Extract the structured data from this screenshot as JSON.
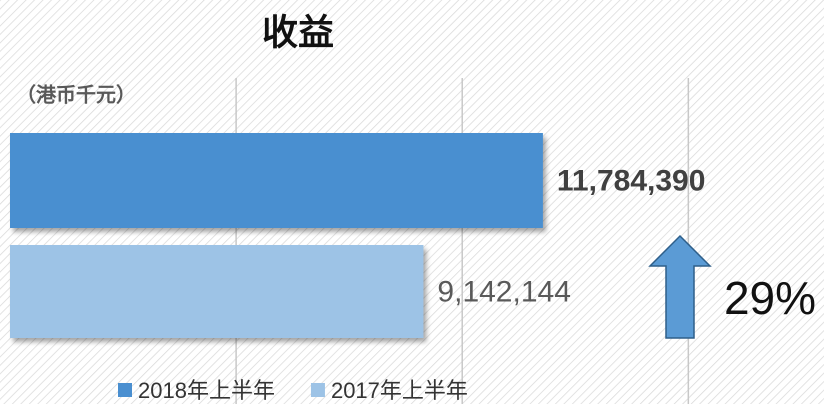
{
  "chart_data": {
    "type": "hbar",
    "title": "收益",
    "unit_label": "（港币千元）",
    "annotation": "29%",
    "xlim": [
      0,
      18000000
    ],
    "xticks": [
      5000000,
      10000000,
      15000000
    ],
    "grid": true,
    "legend": "bottom",
    "series": [
      {
        "name": "2018年上半年",
        "color": "#4a8fd0",
        "values": [
          11784390
        ],
        "value_labels": [
          "11,784,390"
        ]
      },
      {
        "name": "2017年上半年",
        "color": "#9dc3e6",
        "values": [
          9142144
        ],
        "value_labels": [
          "9,142,144"
        ]
      }
    ]
  }
}
